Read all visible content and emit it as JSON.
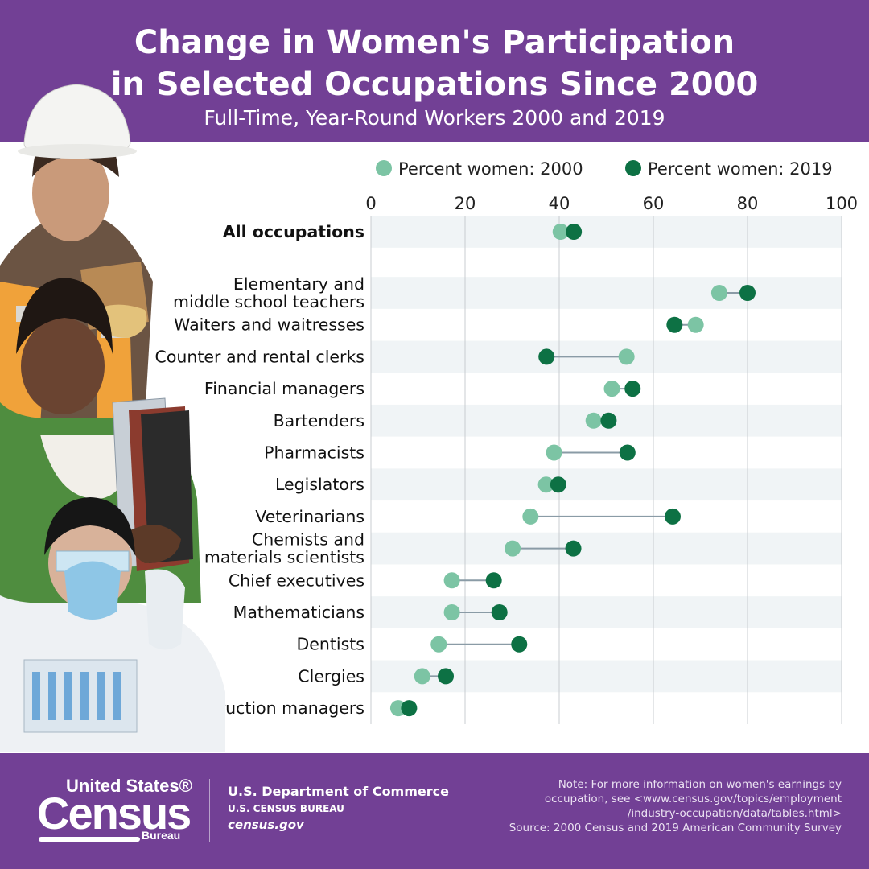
{
  "header": {
    "title_line1": "Change in Women's Participation",
    "title_line2": "in Selected Occupations Since 2000",
    "subtitle": "Full-Time, Year-Round Workers 2000 and 2019",
    "bg_color": "#724095"
  },
  "chart_data": {
    "type": "dumbbell",
    "xlim": [
      0,
      100
    ],
    "ticks": [
      0,
      20,
      40,
      60,
      80,
      100
    ],
    "grid": "vertical",
    "legend_placement": "top-right",
    "series": [
      {
        "name": "Percent women: 2000",
        "color": "#7cc4a4"
      },
      {
        "name": "Percent women: 2019",
        "color": "#0d7144"
      }
    ],
    "categories": [
      {
        "label": [
          "All occupations"
        ],
        "v2000": 40.3,
        "v2019": 43.1,
        "bold": true
      },
      {
        "label": [
          "Elementary and",
          "middle school teachers"
        ],
        "v2000": 74,
        "v2019": 80
      },
      {
        "label": [
          "Waiters and waitresses"
        ],
        "v2000": 69,
        "v2019": 64.5
      },
      {
        "label": [
          "Counter and rental clerks"
        ],
        "v2000": 54.3,
        "v2019": 37.3
      },
      {
        "label": [
          "Financial managers"
        ],
        "v2000": 51.2,
        "v2019": 55.6
      },
      {
        "label": [
          "Bartenders"
        ],
        "v2000": 47.3,
        "v2019": 50.5
      },
      {
        "label": [
          "Pharmacists"
        ],
        "v2000": 38.9,
        "v2019": 54.5
      },
      {
        "label": [
          "Legislators"
        ],
        "v2000": 37.2,
        "v2019": 39.8
      },
      {
        "label": [
          "Veterinarians"
        ],
        "v2000": 33.9,
        "v2019": 64.1
      },
      {
        "label": [
          "Chemists and",
          "materials scientists"
        ],
        "v2000": 30.1,
        "v2019": 43
      },
      {
        "label": [
          "Chief executives"
        ],
        "v2000": 17.2,
        "v2019": 26.1
      },
      {
        "label": [
          "Mathematicians"
        ],
        "v2000": 17.2,
        "v2019": 27.3
      },
      {
        "label": [
          "Dentists"
        ],
        "v2000": 14.4,
        "v2019": 31.5
      },
      {
        "label": [
          "Clergies"
        ],
        "v2000": 10.9,
        "v2019": 15.9
      },
      {
        "label": [
          "Construction managers"
        ],
        "v2000": 5.8,
        "v2019": 8.1
      }
    ],
    "row_band_color": "#f0f4f6",
    "connector_color": "#8a9ba6",
    "grid_color": "#c9cdd0"
  },
  "footer": {
    "logo_line1": "United States®",
    "logo_line2": "Census",
    "logo_line3": "Bureau",
    "dept": "U.S. Department of Commerce",
    "bureau": "U.S. CENSUS BUREAU",
    "site": "census.gov",
    "note_lines": [
      "Note: For more information on women's earnings by",
      "occupation, see <www.census.gov/topics/employment",
      "/industry-occupation/data/tables.html>",
      "Source: 2000 Census and 2019 American Community Survey"
    ]
  },
  "illustration": {
    "icon": "women-workers-photo-icon"
  }
}
